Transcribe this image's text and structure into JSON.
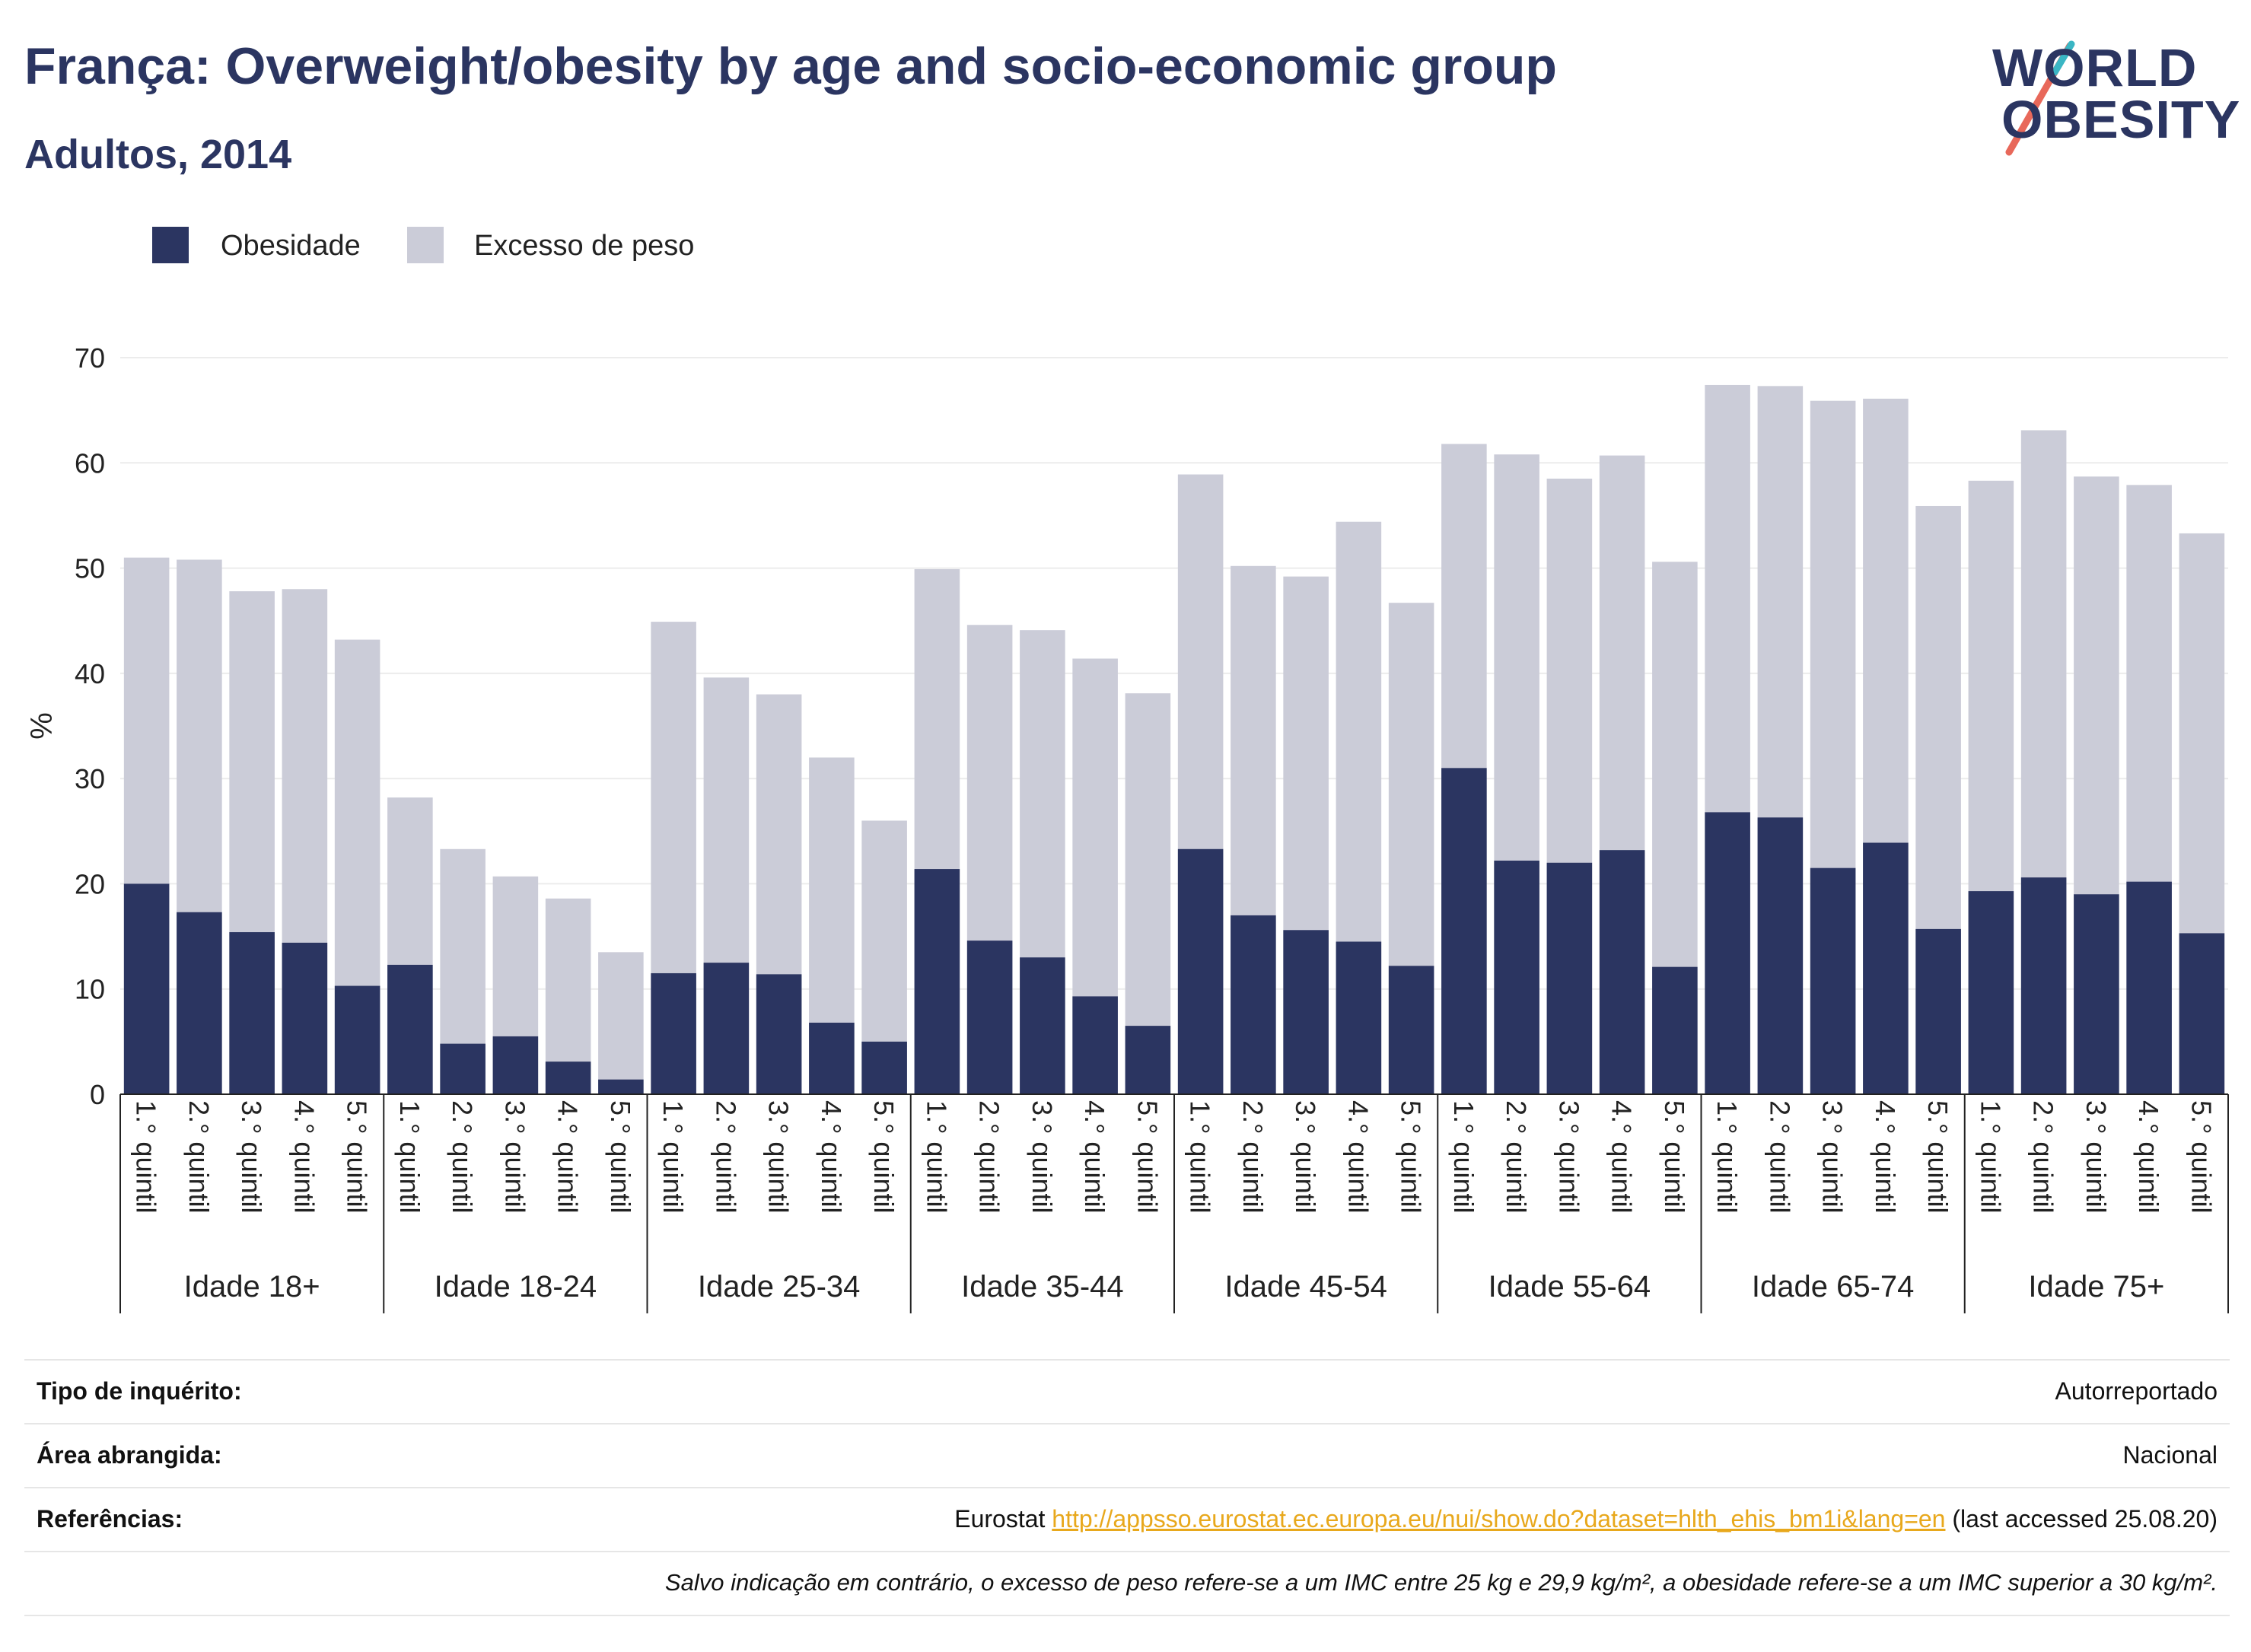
{
  "header": {
    "title": "França: Overweight/obesity by age and socio-economic group",
    "subtitle": "Adultos, 2014"
  },
  "logo": {
    "line1": "WORLD",
    "line2": "OBESITY"
  },
  "colors": {
    "obesity": "#2b3561",
    "overweight": "#cbccd8",
    "grid": "#ececec",
    "logo_slash_1": "#e8685a",
    "logo_slash_2": "#3ab6c4"
  },
  "legend": [
    {
      "label": "Obesidade",
      "color": "#2b3561"
    },
    {
      "label": "Excesso de peso",
      "color": "#cbccd8"
    }
  ],
  "chart_data": {
    "type": "bar",
    "stacked": true,
    "ylabel": "%",
    "ylim": [
      0,
      70
    ],
    "yticks": [
      0,
      10,
      20,
      30,
      40,
      50,
      60,
      70
    ],
    "grid": true,
    "legend_position": "top-left",
    "groups": [
      "Idade 18+",
      "Idade 18-24",
      "Idade 25-34",
      "Idade 35-44",
      "Idade 45-54",
      "Idade 55-64",
      "Idade 65-74",
      "Idade 75+"
    ],
    "subcategories": [
      "1.° quintil",
      "2.° quintil",
      "3.° quintil",
      "4.° quintil",
      "5.° quintil"
    ],
    "series": [
      {
        "name": "Obesidade",
        "values": [
          [
            20.0,
            17.3,
            15.4,
            14.4,
            10.3
          ],
          [
            12.3,
            4.8,
            5.5,
            3.1,
            1.4
          ],
          [
            11.5,
            12.5,
            11.4,
            6.8,
            5.0
          ],
          [
            21.4,
            14.6,
            13.0,
            9.3,
            6.5
          ],
          [
            23.3,
            17.0,
            15.6,
            14.5,
            12.2
          ],
          [
            31.0,
            22.2,
            22.0,
            23.2,
            12.1
          ],
          [
            26.8,
            26.3,
            21.5,
            23.9,
            15.7
          ],
          [
            19.3,
            20.6,
            19.0,
            20.2,
            15.3
          ]
        ]
      },
      {
        "name": "Excesso de peso",
        "values": [
          [
            51.0,
            50.8,
            47.8,
            48.0,
            43.2
          ],
          [
            28.2,
            23.3,
            20.7,
            18.6,
            13.5
          ],
          [
            44.9,
            39.6,
            38.0,
            32.0,
            26.0
          ],
          [
            49.9,
            44.6,
            44.1,
            41.4,
            38.1
          ],
          [
            58.9,
            50.2,
            49.2,
            54.4,
            46.7
          ],
          [
            61.8,
            60.8,
            58.5,
            60.7,
            50.6
          ],
          [
            67.4,
            67.3,
            65.9,
            66.1,
            55.9
          ],
          [
            58.3,
            63.1,
            58.7,
            57.9,
            53.3
          ]
        ]
      }
    ]
  },
  "info": {
    "survey_label": "Tipo de inquérito:",
    "survey_value": "Autorreportado",
    "area_label": "Área abrangida:",
    "area_value": "Nacional",
    "ref_label": "Referências:",
    "ref_prefix": "Eurostat ",
    "ref_url": "http://appsso.eurostat.ec.europa.eu/nui/show.do?dataset=hlth_ehis_bm1i&lang=en",
    "ref_suffix": " (last accessed 25.08.20)",
    "note": "Salvo indicação em contrário, o excesso de peso refere-se a um IMC entre 25 kg e 29,9 kg/m², a obesidade refere-se a um IMC superior a 30 kg/m²."
  }
}
